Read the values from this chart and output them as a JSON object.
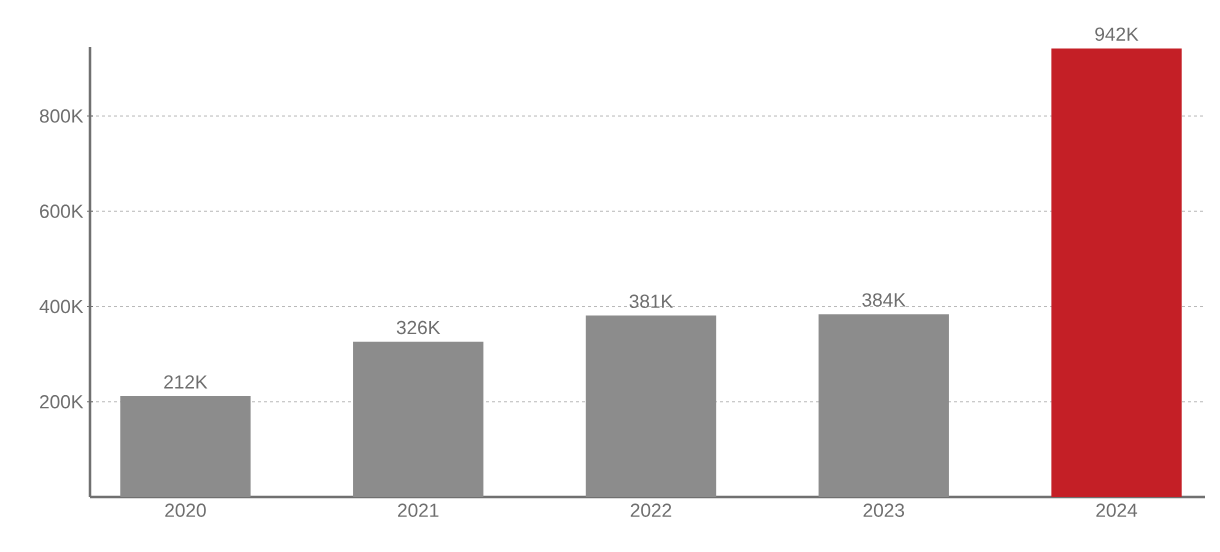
{
  "chart_data": {
    "type": "bar",
    "categories": [
      "2020",
      "2021",
      "2022",
      "2023",
      "2024"
    ],
    "values": [
      212000,
      326000,
      381000,
      384000,
      942000
    ],
    "value_labels": [
      "212K",
      "326K",
      "381K",
      "384K",
      "942K"
    ],
    "colors": [
      "#8c8c8c",
      "#8c8c8c",
      "#8c8c8c",
      "#8c8c8c",
      "#c41f26"
    ],
    "ylim": [
      0,
      945000
    ],
    "yticks": [
      {
        "value": 200000,
        "label": "200K"
      },
      {
        "value": 400000,
        "label": "400K"
      },
      {
        "value": 600000,
        "label": "600K"
      },
      {
        "value": 800000,
        "label": "800K"
      }
    ],
    "grid": "y"
  }
}
